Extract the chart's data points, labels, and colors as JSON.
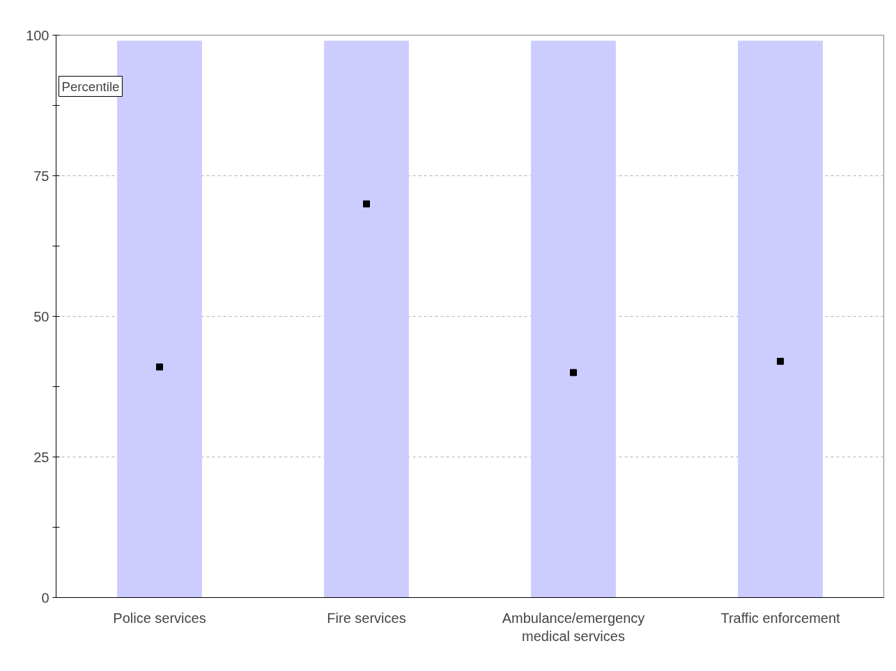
{
  "chart_data": {
    "type": "bar",
    "ylabel": "Percentile",
    "categories": [
      "Police services",
      "Fire services",
      "Ambulance/emergency medical services",
      "Traffic enforcement"
    ],
    "series": [
      {
        "color": "#ccccff",
        "values": [
          99,
          99,
          99,
          99
        ]
      },
      {
        "type": "scatter",
        "color": "#000000",
        "marker": "square",
        "values": [
          41,
          70,
          40,
          42
        ]
      }
    ],
    "ylim": [
      0,
      100
    ],
    "yticks": [
      0,
      {
        "value": 12.5,
        "label": null
      },
      25,
      {
        "value": 37.5,
        "label": null
      },
      50,
      {
        "value": 62.5,
        "label": null
      },
      75,
      {
        "value": 87.5,
        "label": null
      },
      100
    ],
    "grid": "y",
    "legend": false
  }
}
